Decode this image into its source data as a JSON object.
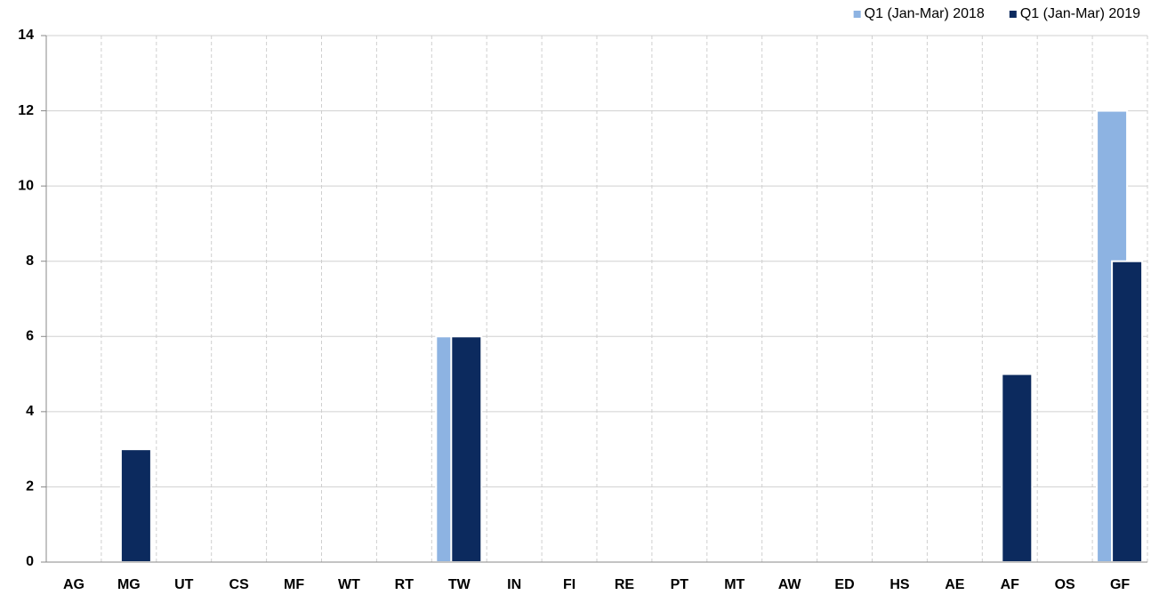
{
  "chart_data": {
    "type": "bar",
    "categories": [
      "AG",
      "MG",
      "UT",
      "CS",
      "MF",
      "WT",
      "RT",
      "TW",
      "IN",
      "FI",
      "RE",
      "PT",
      "MT",
      "AW",
      "ED",
      "HS",
      "AE",
      "AF",
      "OS",
      "GF"
    ],
    "series": [
      {
        "name": "Q1 (Jan-Mar) 2018",
        "color": "#8db3e2",
        "values": [
          0,
          0,
          0,
          0,
          0,
          0,
          0,
          6,
          0,
          0,
          0,
          0,
          0,
          0,
          0,
          0,
          0,
          0,
          0,
          12
        ]
      },
      {
        "name": "Q1 (Jan-Mar) 2019",
        "color": "#0c2a5e",
        "values": [
          0,
          3,
          0,
          0,
          0,
          0,
          0,
          6,
          0,
          0,
          0,
          0,
          0,
          0,
          0,
          0,
          0,
          5,
          0,
          8
        ]
      }
    ],
    "ylim": [
      0,
      14
    ],
    "yticks": [
      0,
      2,
      4,
      6,
      8,
      10,
      12,
      14
    ],
    "grid": true,
    "legend": "top-right"
  }
}
